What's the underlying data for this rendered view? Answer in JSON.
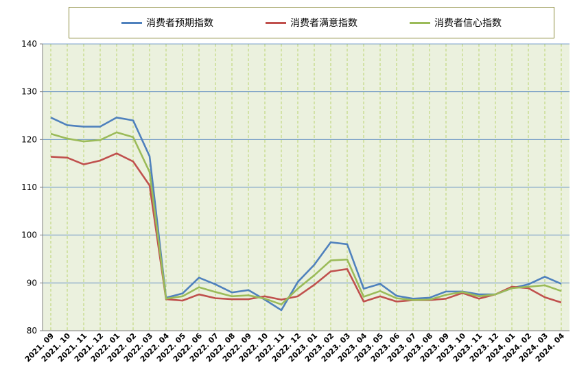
{
  "chart_data": {
    "type": "line",
    "title": "",
    "xlabel": "",
    "ylabel": "",
    "ylim": [
      80,
      140
    ],
    "yticks": [
      80,
      90,
      100,
      110,
      120,
      130,
      140
    ],
    "grid": true,
    "legend_position": "top",
    "background_color": "#ebf1de",
    "categories": [
      "2021. 09",
      "2021. 10",
      "2021. 11",
      "2021. 12",
      "2022. 01",
      "2022. 02",
      "2022. 03",
      "2022. 04",
      "2022. 05",
      "2022. 06",
      "2022. 07",
      "2022. 08",
      "2022. 09",
      "2022. 10",
      "2022. 11",
      "2022. 12",
      "2023. 01",
      "2023. 02",
      "2023. 03",
      "2023. 04",
      "2023. 05",
      "2023. 06",
      "2023. 07",
      "2023. 08",
      "2023. 09",
      "2023. 10",
      "2023. 11",
      "2023. 12",
      "2024. 01",
      "2024. 02",
      "2024. 03",
      "2024. 04"
    ],
    "series": [
      {
        "name": "消费者预期指数",
        "color": "#4f81bd",
        "values": [
          124.6,
          123.0,
          122.7,
          122.7,
          124.6,
          124.0,
          116.5,
          86.9,
          87.8,
          91.1,
          89.7,
          88.0,
          88.5,
          86.5,
          84.3,
          90.2,
          93.8,
          98.5,
          98.1,
          88.8,
          89.8,
          87.3,
          86.7,
          86.9,
          88.2,
          88.2,
          87.6,
          87.6,
          88.9,
          89.7,
          91.3,
          89.8
        ]
      },
      {
        "name": "消费者满意指数",
        "color": "#c0504d",
        "values": [
          116.4,
          116.2,
          114.8,
          115.6,
          117.1,
          115.4,
          110.4,
          86.6,
          86.3,
          87.6,
          86.8,
          86.6,
          86.6,
          87.2,
          86.5,
          87.2,
          89.6,
          92.4,
          92.9,
          86.1,
          87.2,
          86.1,
          86.4,
          86.4,
          86.7,
          87.9,
          86.7,
          87.6,
          89.2,
          88.9,
          87.0,
          85.9
        ]
      },
      {
        "name": "消费者信心指数",
        "color": "#9bbb59",
        "values": [
          121.2,
          120.2,
          119.6,
          119.9,
          121.5,
          120.5,
          113.2,
          86.7,
          87.2,
          89.1,
          88.1,
          87.2,
          87.4,
          86.7,
          85.5,
          88.8,
          91.6,
          94.7,
          94.9,
          87.1,
          88.3,
          86.8,
          86.4,
          86.5,
          87.5,
          88.1,
          87.2,
          87.6,
          88.9,
          89.2,
          89.5,
          88.3
        ]
      }
    ]
  }
}
